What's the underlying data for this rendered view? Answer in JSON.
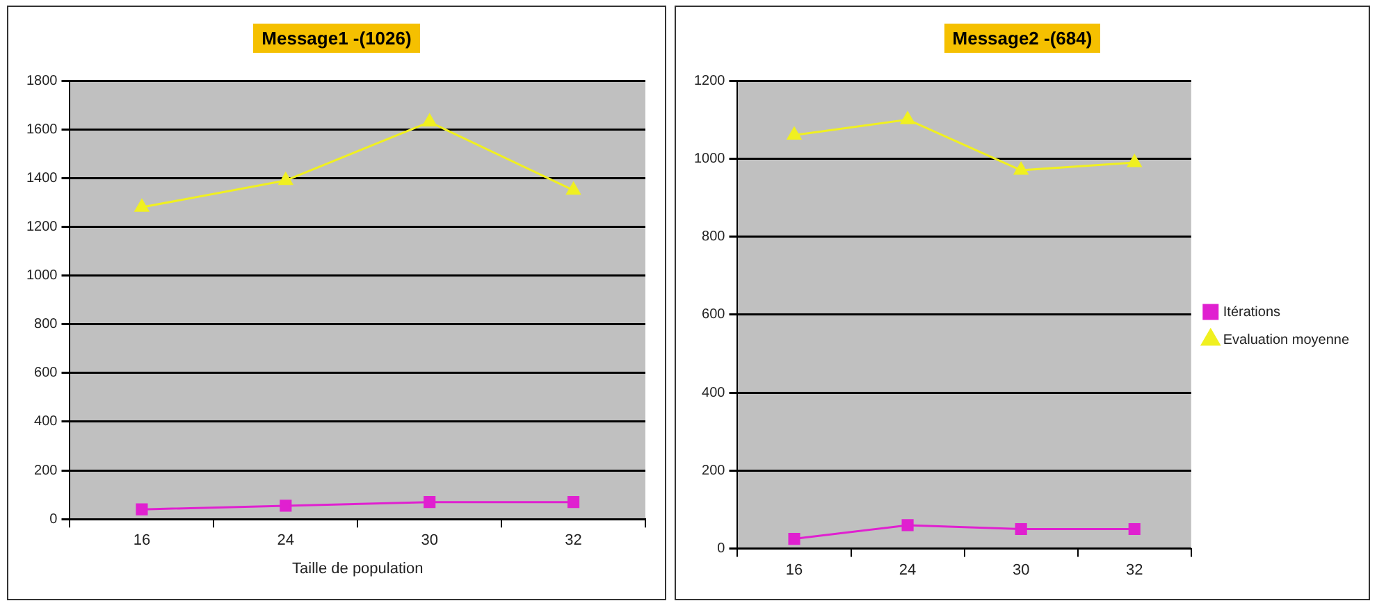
{
  "chart_data": [
    {
      "type": "line",
      "title": "Message1 -(1026)",
      "xlabel": "Taille de population",
      "categories": [
        "16",
        "24",
        "30",
        "32"
      ],
      "series": [
        {
          "color": "#e020d0",
          "marker": "square",
          "values": [
            40,
            55,
            70,
            70
          ]
        },
        {
          "color": "#f0f020",
          "marker": "triangle",
          "values": [
            1280,
            1390,
            1630,
            1350
          ]
        }
      ],
      "ylim": [
        0,
        1800
      ],
      "yticks": [
        0,
        200,
        400,
        600,
        800,
        1000,
        1200,
        1400,
        1600,
        1800
      ],
      "grid": "y",
      "legend": false
    },
    {
      "type": "line",
      "title": "Message2 -(684)",
      "categories": [
        "16",
        "24",
        "30",
        "32"
      ],
      "series": [
        {
          "name": "Itérations",
          "color": "#e020d0",
          "marker": "square",
          "values": [
            25,
            60,
            50,
            50
          ]
        },
        {
          "name": "Evaluation moyenne",
          "color": "#f0f020",
          "marker": "triangle",
          "values": [
            1060,
            1100,
            970,
            990
          ]
        }
      ],
      "ylim": [
        0,
        1200
      ],
      "yticks": [
        0,
        200,
        400,
        600,
        800,
        1000,
        1200
      ],
      "grid": "y",
      "legend": "right"
    }
  ]
}
